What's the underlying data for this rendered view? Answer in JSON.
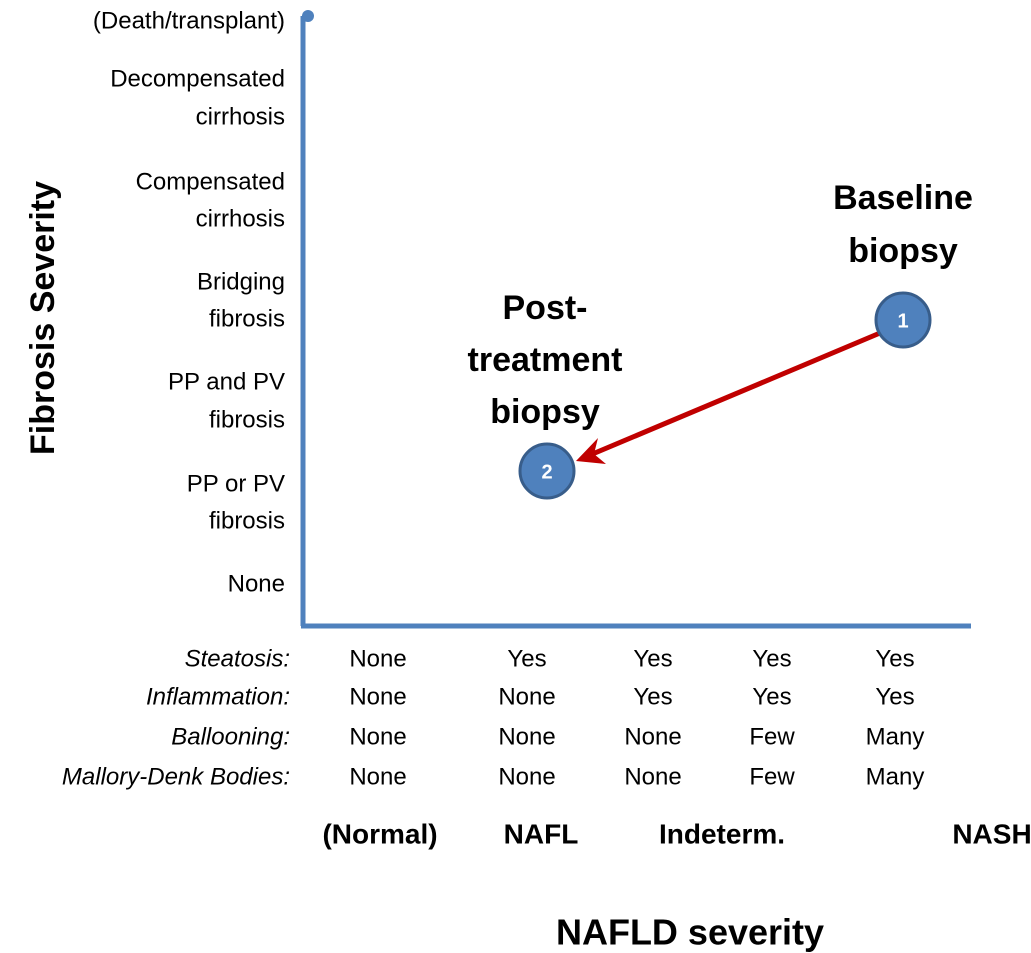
{
  "y_axis": {
    "title": "Fibrosis Severity",
    "levels": [
      [
        "(Death/transplant)"
      ],
      [
        "Decompensated",
        "cirrhosis"
      ],
      [
        "Compensated",
        "cirrhosis"
      ],
      [
        "Bridging",
        "fibrosis"
      ],
      [
        "PP and PV",
        "fibrosis"
      ],
      [
        "PP or PV",
        "fibrosis"
      ],
      [
        "None"
      ]
    ]
  },
  "table": {
    "rows": [
      {
        "label": "Steatosis:",
        "values": [
          "None",
          "Yes",
          "Yes",
          "Yes",
          "Yes"
        ]
      },
      {
        "label": "Inflammation:",
        "values": [
          "None",
          "None",
          "Yes",
          "Yes",
          "Yes"
        ]
      },
      {
        "label": "Ballooning:",
        "values": [
          "None",
          "None",
          "None",
          "Few",
          "Many"
        ]
      },
      {
        "label": "Mallory-Denk Bodies:",
        "values": [
          "None",
          "None",
          "None",
          "Few",
          "Many"
        ]
      }
    ]
  },
  "categories": [
    "(Normal)",
    "NAFL",
    "Indeterm.",
    "NASH"
  ],
  "x_axis": {
    "title": "NAFLD severity"
  },
  "points": [
    {
      "label": "1",
      "caption": [
        "Baseline",
        "biopsy"
      ]
    },
    {
      "label": "2",
      "caption": [
        "Post-",
        "treatment",
        "biopsy"
      ]
    }
  ]
}
